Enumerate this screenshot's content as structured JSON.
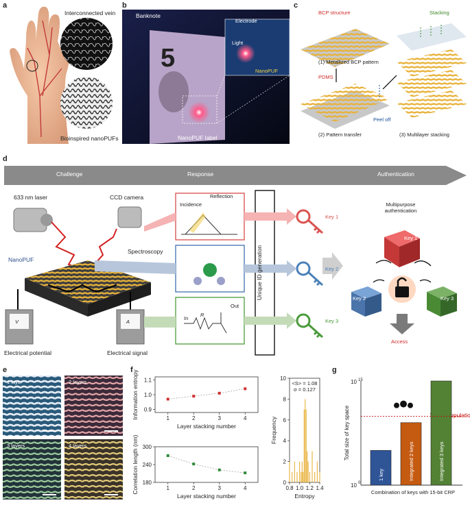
{
  "panels": {
    "a": {
      "letter": "a",
      "label_vein": "Interconnected vein",
      "label_puf": "Bioinspired nanoPUFs"
    },
    "b": {
      "letter": "b",
      "label_banknote": "Banknote",
      "label_electrode": "Electrode",
      "label_light": "Light",
      "label_nanopuf": "NanoPUF",
      "label_nanopuf_label": "NanoPUF label",
      "note_digit": "5"
    },
    "c": {
      "letter": "c",
      "label_bcp": "BCP structure",
      "label_stacking": "Stacking",
      "step1": "(1) Metallized BCP pattern",
      "label_pdms": "PDMS",
      "label_peel": "Peel off",
      "step2": "(2) Pattern transfer",
      "step3": "(3) Multilayer stacking"
    },
    "d": {
      "letter": "d",
      "arrow_challenge": "Challenge",
      "arrow_response": "Response",
      "arrow_auth": "Authentication",
      "laser": "633 nm laser",
      "camera": "CCD camera",
      "nanopuf": "NanoPUF",
      "spectroscopy": "Spectroscopy",
      "incidence": "Incidence",
      "reflection": "Reflection",
      "in_label": "In",
      "r_label": "R",
      "out_label": "Out",
      "id_gen": "Unique ID generation",
      "key1": "Key 1",
      "key2": "Key 2",
      "key3": "Key 3",
      "multipurpose": "Multipurpose authentication",
      "access": "Access",
      "potential": "Electrical potential",
      "signal": "Electrical signal",
      "v_sym": "V",
      "a_sym": "A"
    },
    "e": {
      "letter": "e",
      "tiles": [
        "1 layer",
        "2 layers",
        "3 layers",
        "4 layers"
      ]
    },
    "f": {
      "letter": "f"
    },
    "g": {
      "letter": "g",
      "world_population": "World population"
    }
  },
  "colors": {
    "key1": "#d9534f",
    "key2": "#4a80b8",
    "key3": "#4a9a3a",
    "bar1": "#2f5597",
    "bar2": "#c55a11",
    "bar3": "#548235",
    "gold": "#e8b23a",
    "arrow": "#888888"
  },
  "chart_data": [
    {
      "type": "scatter",
      "title": "",
      "xlabel": "Layer stacking number",
      "ylabel": "Information entropy",
      "x": [
        1,
        2,
        3,
        4
      ],
      "values": [
        0.97,
        0.99,
        1.01,
        1.04
      ],
      "xticks": [
        "1",
        "2",
        "3",
        "4"
      ],
      "yticks": [
        "0.9",
        "1.0",
        "1.1"
      ],
      "ylim": [
        0.88,
        1.12
      ]
    },
    {
      "type": "scatter",
      "title": "",
      "xlabel": "Layer stacking number",
      "ylabel": "Correlation length (nm)",
      "x": [
        1,
        2,
        3,
        4
      ],
      "values": [
        270,
        242,
        222,
        212
      ],
      "xticks": [
        "1",
        "2",
        "3",
        "4"
      ],
      "yticks": [
        "180",
        "240",
        "300"
      ],
      "ylim": [
        180,
        300
      ]
    },
    {
      "type": "bar",
      "title": "",
      "xlabel": "Entropy",
      "ylabel": "Frequency",
      "annotation_s": "<S> = 1.08",
      "annotation_sigma": "σ = 0.127",
      "x": [
        0.8,
        0.85,
        0.9,
        0.95,
        1.0,
        1.03,
        1.05,
        1.07,
        1.09,
        1.11,
        1.13,
        1.15,
        1.17,
        1.2,
        1.25,
        1.3,
        1.35,
        1.4
      ],
      "values": [
        2,
        1,
        2,
        1,
        2,
        1,
        2,
        1,
        7,
        8,
        7,
        3,
        2,
        1,
        3,
        1,
        2,
        1
      ],
      "xticks": [
        "0.8",
        "1.0",
        "1.2",
        "1.4"
      ],
      "yticks": [
        "0",
        "2",
        "4",
        "6",
        "8",
        "10"
      ],
      "ylim": [
        0,
        10
      ]
    },
    {
      "type": "bar",
      "title": "",
      "xlabel": "Combination of keys with 15-bit CRP",
      "ylabel": "Total size of key space",
      "categories": [
        "1 key",
        "Integrated 2 keys",
        "Integrated 3 keys"
      ],
      "values": [
        100000,
        1000000000,
        1000000000000000
      ],
      "yscale": "log",
      "yticks": [
        "10^0",
        "10^15"
      ],
      "reference_line": {
        "label": "World population",
        "value": 8000000000
      }
    }
  ]
}
